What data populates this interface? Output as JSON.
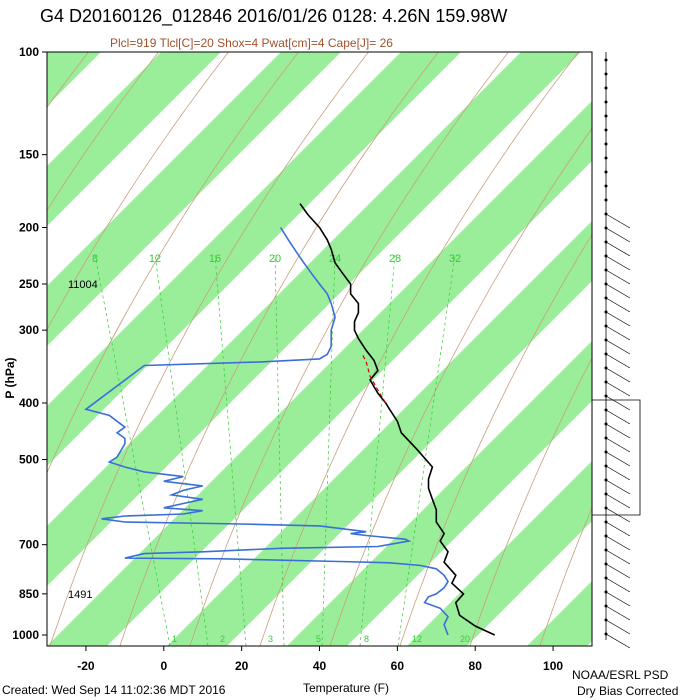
{
  "header": {
    "title": "G4 D20160126_012846 2016/01/26 0128:  4.26N 159.98W",
    "subtitle": "Plcl=919 Tlcl[C]=20 Shox=4 Pwat[cm]=4 Cape[J]= 26"
  },
  "footer": {
    "created": "Created: Wed Sep 14 11:02:36 MDT 2016",
    "org": "NOAA/ESRL PSD",
    "note": "Dry Bias Corrected"
  },
  "chart_data": {
    "type": "line",
    "title": "G4 D20160126_012846 2016/01/26 0128:  4.26N 159.98W",
    "xlabel": "Temperature (F)",
    "ylabel": "P (hPa)",
    "xlim": [
      -30,
      110
    ],
    "ylim": [
      1000,
      100
    ],
    "y_scale": "log",
    "x_ticks": [
      "-20",
      "0",
      "20",
      "40",
      "60",
      "80",
      "100"
    ],
    "y_ticks": [
      "100",
      "150",
      "200",
      "250",
      "300",
      "400",
      "500",
      "700",
      "850",
      "1000"
    ],
    "height_labels": [
      {
        "text": "11004",
        "pressure": 250
      },
      {
        "text": "1491",
        "pressure": 850
      }
    ],
    "mixing_ratio_labels": [
      "8",
      "12",
      "16",
      "20",
      "24",
      "28",
      "32"
    ],
    "bottom_labels": [
      "1",
      "2",
      "3",
      "5",
      "8",
      "12",
      "20"
    ],
    "colors": {
      "temperature": "#000000",
      "dewpoint": "#3a6fd8",
      "parcel": "#cc0000",
      "band": "#9aee9a",
      "adiabat": "#c8a080",
      "mixing": "#33cc33"
    },
    "series": [
      {
        "name": "Temperature",
        "points": [
          [
            85,
            1000
          ],
          [
            80,
            965
          ],
          [
            76,
            925
          ],
          [
            75,
            880
          ],
          [
            77,
            850
          ],
          [
            74,
            815
          ],
          [
            75,
            790
          ],
          [
            72,
            750
          ],
          [
            73,
            720
          ],
          [
            71,
            690
          ],
          [
            72,
            670
          ],
          [
            70,
            640
          ],
          [
            70,
            610
          ],
          [
            69,
            585
          ],
          [
            68,
            560
          ],
          [
            68,
            540
          ],
          [
            69,
            515
          ],
          [
            65,
            480
          ],
          [
            61,
            450
          ],
          [
            60,
            430
          ],
          [
            58,
            410
          ],
          [
            57,
            400
          ],
          [
            55,
            385
          ],
          [
            54,
            375
          ],
          [
            53,
            365
          ],
          [
            55,
            352
          ],
          [
            54,
            338
          ],
          [
            52,
            325
          ],
          [
            50,
            310
          ],
          [
            49,
            300
          ],
          [
            49,
            290
          ],
          [
            50,
            280
          ],
          [
            50,
            270
          ],
          [
            48,
            260
          ],
          [
            48,
            250
          ],
          [
            46,
            240
          ],
          [
            44,
            230
          ],
          [
            43,
            218
          ],
          [
            42,
            210
          ],
          [
            40,
            200
          ],
          [
            37,
            190
          ],
          [
            35,
            182
          ]
        ]
      },
      {
        "name": "Dewpoint",
        "points": [
          [
            73,
            1000
          ],
          [
            72,
            960
          ],
          [
            73,
            930
          ],
          [
            71,
            900
          ],
          [
            67,
            880
          ],
          [
            68,
            860
          ],
          [
            70,
            850
          ],
          [
            72,
            830
          ],
          [
            73,
            810
          ],
          [
            72,
            790
          ],
          [
            70,
            770
          ],
          [
            66,
            760
          ],
          [
            58,
            752
          ],
          [
            45,
            748
          ],
          [
            15,
            740
          ],
          [
            -10,
            738
          ],
          [
            -5,
            725
          ],
          [
            10,
            720
          ],
          [
            30,
            710
          ],
          [
            55,
            705
          ],
          [
            63,
            690
          ],
          [
            62,
            685
          ],
          [
            52,
            675
          ],
          [
            48,
            670
          ],
          [
            52,
            665
          ],
          [
            40,
            650
          ],
          [
            20,
            645
          ],
          [
            -10,
            640
          ],
          [
            -16,
            632
          ],
          [
            -10,
            625
          ],
          [
            5,
            620
          ],
          [
            10,
            612
          ],
          [
            0,
            605
          ],
          [
            5,
            595
          ],
          [
            10,
            585
          ],
          [
            2,
            575
          ],
          [
            5,
            565
          ],
          [
            10,
            555
          ],
          [
            0,
            545
          ],
          [
            5,
            535
          ],
          [
            -5,
            525
          ],
          [
            -10,
            515
          ],
          [
            -14,
            505
          ],
          [
            -12,
            495
          ],
          [
            -10,
            470
          ],
          [
            -10,
            460
          ],
          [
            -12,
            450
          ],
          [
            -10,
            440
          ],
          [
            -12,
            430
          ],
          [
            -14,
            420
          ],
          [
            -20,
            410
          ],
          [
            -5,
            345
          ],
          [
            25,
            340
          ],
          [
            40,
            336
          ],
          [
            42,
            330
          ],
          [
            43,
            320
          ],
          [
            43,
            310
          ],
          [
            43,
            300
          ],
          [
            44,
            285
          ],
          [
            43,
            270
          ],
          [
            42,
            260
          ],
          [
            40,
            250
          ],
          [
            38,
            240
          ],
          [
            36,
            230
          ],
          [
            34,
            220
          ],
          [
            32,
            210
          ],
          [
            30,
            200
          ]
        ]
      },
      {
        "name": "Parcel",
        "points": [
          [
            57,
            400
          ],
          [
            55,
            380
          ],
          [
            53,
            360
          ],
          [
            52,
            340
          ],
          [
            51,
            330
          ]
        ]
      }
    ]
  }
}
